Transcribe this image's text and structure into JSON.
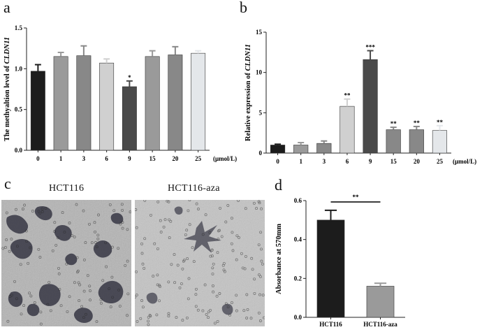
{
  "panels": {
    "a": "a",
    "b": "b",
    "c": "c",
    "d": "d"
  },
  "images": {
    "left_title": "HCT116",
    "right_title": "HCT116-aza"
  },
  "colors": {
    "dark": "#1c1c1c",
    "mid_dark": "#4a4a4a",
    "mid": "#888888",
    "light": "#9a9a9a",
    "pale": "#d0d0d0",
    "palest": "#e4e7ea"
  },
  "chart_data": [
    {
      "id": "a",
      "type": "bar",
      "ylabel_prefix": "The methyaltion level of ",
      "ylabel_gene": "CLDN11",
      "xunit": "(μmol/L)",
      "categories": [
        "0",
        "1",
        "3",
        "6",
        "9",
        "15",
        "20",
        "25"
      ],
      "values": [
        0.97,
        1.15,
        1.16,
        1.07,
        0.78,
        1.15,
        1.17,
        1.19
      ],
      "errors": [
        0.08,
        0.05,
        0.12,
        0.05,
        0.07,
        0.07,
        0.1,
        0.03
      ],
      "annotations": [
        "",
        "",
        "",
        "",
        "*",
        "",
        "",
        ""
      ],
      "colors": [
        "#1c1c1c",
        "#9a9a9a",
        "#888888",
        "#d0d0d0",
        "#4a4a4a",
        "#9a9a9a",
        "#888888",
        "#e4e7ea"
      ],
      "ylim": [
        0,
        1.5
      ],
      "yticks": [
        "0.0",
        "0.5",
        "1.0",
        "1.5"
      ]
    },
    {
      "id": "b",
      "type": "bar",
      "ylabel_prefix": "Relative expression of ",
      "ylabel_gene": "CLDN11",
      "xunit": "(μmol/L)",
      "categories": [
        "0",
        "1",
        "3",
        "6",
        "9",
        "15",
        "20",
        "25"
      ],
      "values": [
        1.0,
        1.0,
        1.2,
        5.8,
        11.6,
        2.9,
        2.9,
        2.8
      ],
      "errors": [
        0.1,
        0.3,
        0.3,
        0.9,
        1.1,
        0.3,
        0.4,
        0.6
      ],
      "annotations": [
        "",
        "",
        "",
        "**",
        "***",
        "**",
        "**",
        "**"
      ],
      "colors": [
        "#1c1c1c",
        "#9a9a9a",
        "#888888",
        "#d0d0d0",
        "#4a4a4a",
        "#888888",
        "#888888",
        "#e4e7ea"
      ],
      "ylim": [
        0,
        15
      ],
      "yticks": [
        "0",
        "5",
        "10",
        "15"
      ]
    },
    {
      "id": "d",
      "type": "bar",
      "ylabel": "Absorbance at 570mm",
      "categories": [
        "HCT116",
        "HCT116-aza"
      ],
      "values": [
        0.5,
        0.16
      ],
      "errors": [
        0.05,
        0.015
      ],
      "colors": [
        "#1c1c1c",
        "#9a9a9a"
      ],
      "ylim": [
        0,
        0.6
      ],
      "yticks": [
        "0.0",
        "0.2",
        "0.4",
        "0.6"
      ],
      "significance": "**"
    }
  ]
}
